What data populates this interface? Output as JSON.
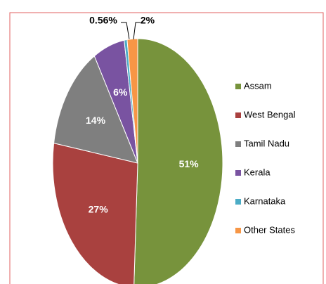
{
  "chart_data": {
    "type": "pie",
    "categories": [
      "Assam",
      "West Bengal",
      "Tamil Nadu",
      "Kerala",
      "Karnataka",
      "Other States"
    ],
    "values": [
      51,
      27,
      14,
      6,
      0.56,
      2
    ],
    "value_labels": [
      "51%",
      "27%",
      "14%",
      "6%",
      "0.56%",
      "2%"
    ],
    "colors": [
      "#77933c",
      "#a9413f",
      "#7f7f7f",
      "#7953a1",
      "#4bacc6",
      "#f79646"
    ],
    "legend": "right"
  }
}
